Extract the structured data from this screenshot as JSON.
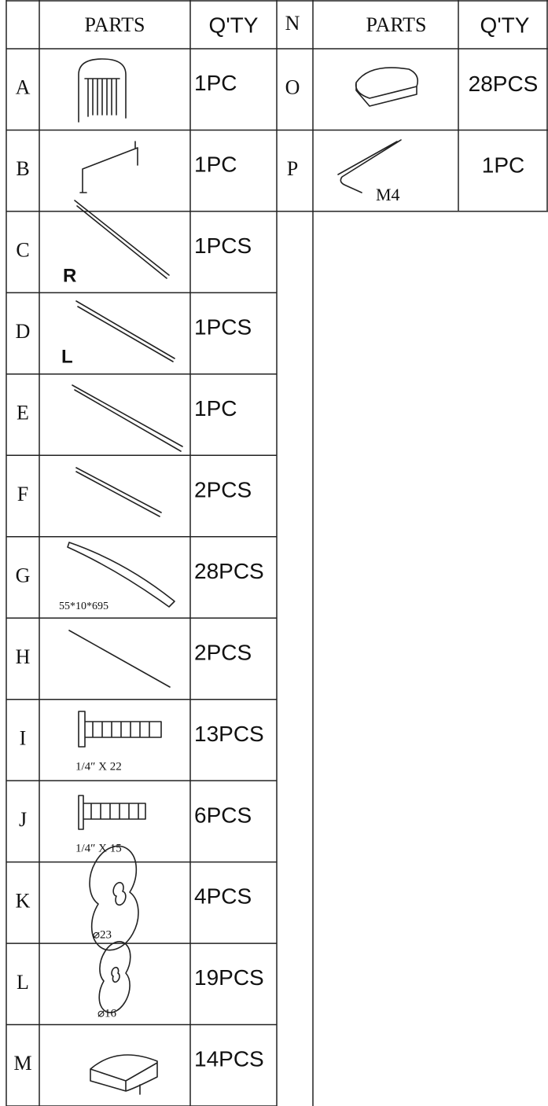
{
  "left_table": {
    "header": [
      "PARTS",
      "Q'TY"
    ],
    "rows": [
      {
        "letter": "A",
        "qty": "1PC"
      },
      {
        "letter": "B",
        "qty": "1PC"
      },
      {
        "letter": "C",
        "qty": "1PCS",
        "note": "R"
      },
      {
        "letter": "D",
        "qty": "1PCS",
        "note": "L"
      },
      {
        "letter": "E",
        "qty": "1PC"
      },
      {
        "letter": "F",
        "qty": "2PCS"
      },
      {
        "letter": "G",
        "qty": "28PCS",
        "note": "55*10*695"
      },
      {
        "letter": "H",
        "qty": "2PCS"
      },
      {
        "letter": "I",
        "qty": "13PCS",
        "note": "1/4″ X 22"
      },
      {
        "letter": "J",
        "qty": "6PCS",
        "note": "1/4″ X 15"
      },
      {
        "letter": "K",
        "qty": "4PCS",
        "note": "⌀23"
      },
      {
        "letter": "L",
        "qty": "19PCS",
        "note": "⌀16"
      },
      {
        "letter": "M",
        "qty": "14PCS"
      }
    ]
  },
  "right_table": {
    "header": [
      "N",
      "PARTS",
      "Q'TY"
    ],
    "rows": [
      {
        "letter": "O",
        "qty": "28PCS"
      },
      {
        "letter": "P",
        "qty": "1PC",
        "note": "M4"
      }
    ]
  }
}
